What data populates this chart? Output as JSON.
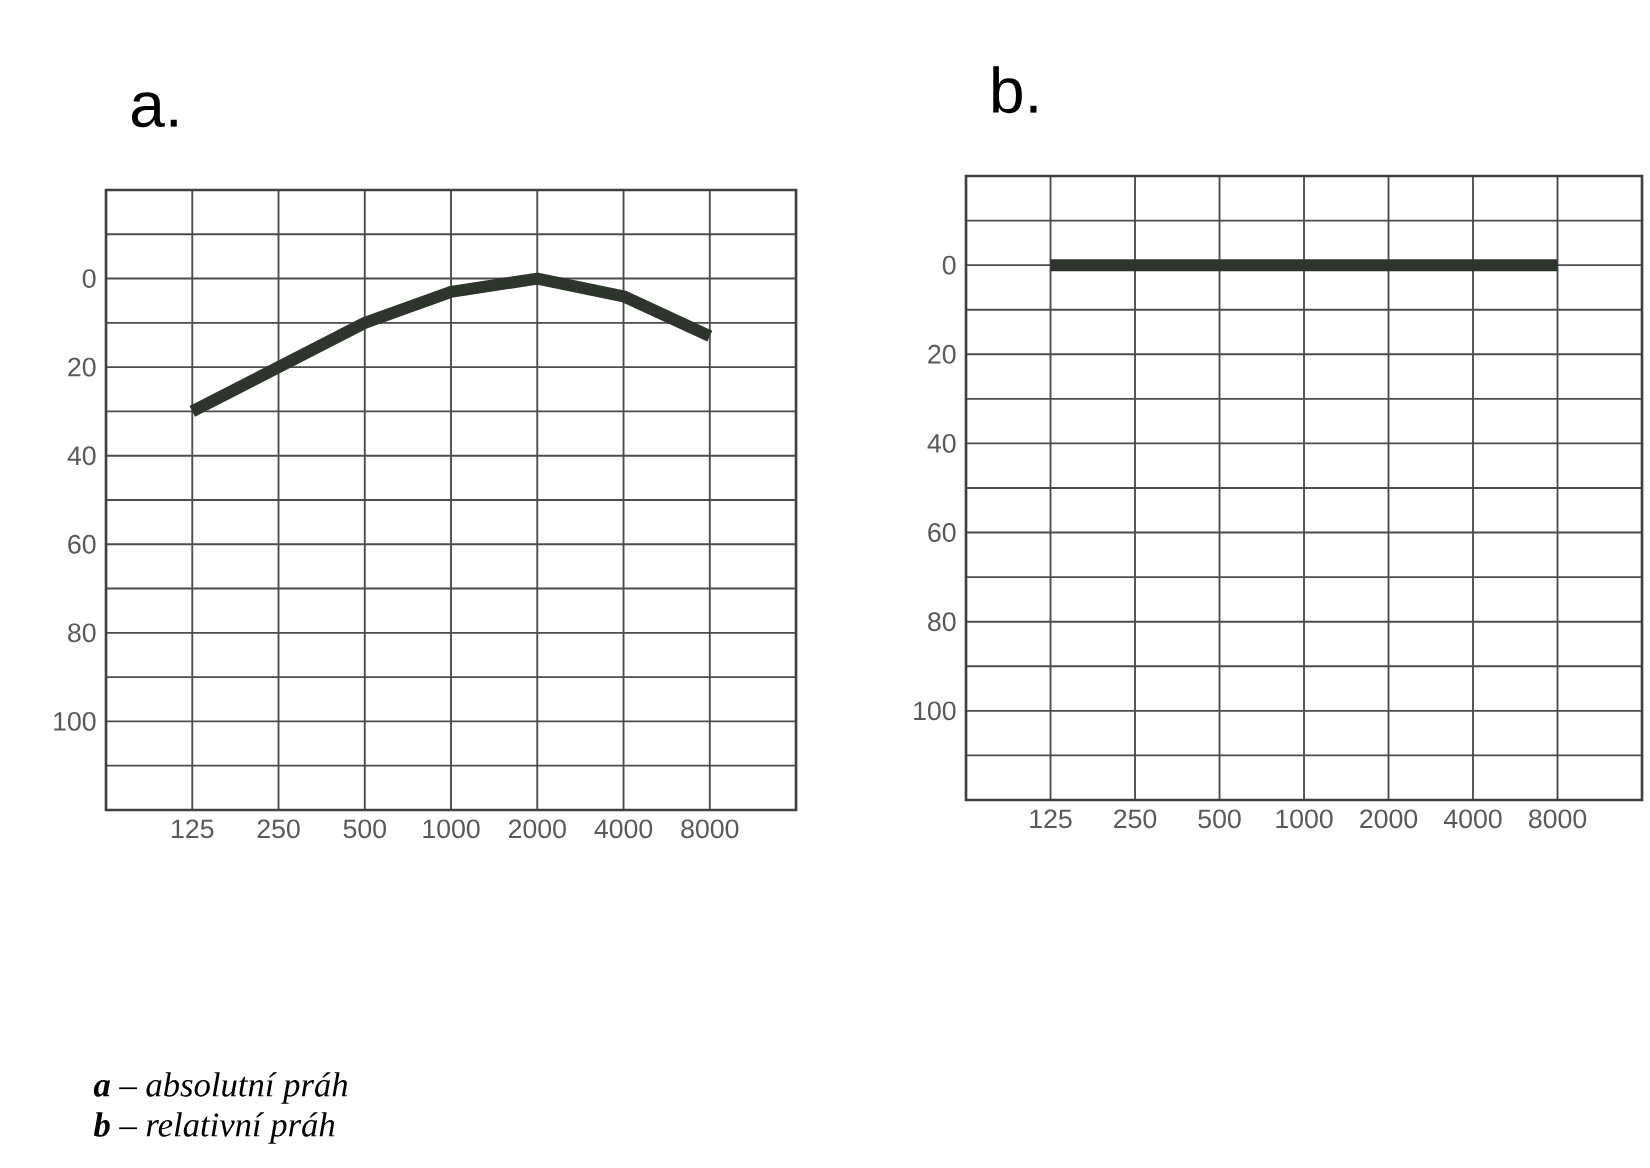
{
  "chart_data": [
    {
      "type": "line",
      "title": "a.",
      "x": [
        125,
        250,
        500,
        1000,
        2000,
        4000,
        8000
      ],
      "values": [
        30,
        20,
        10,
        3,
        0,
        4,
        13
      ],
      "color": "#2d352c",
      "log": "x",
      "xlim": [
        62.5,
        16000
      ],
      "xticks": [
        125,
        250,
        500,
        1000,
        2000,
        4000,
        8000
      ],
      "ylim": [
        120,
        -20
      ],
      "yticks": [
        {
          "value": -10,
          "label": null
        },
        0,
        {
          "value": 10,
          "label": null
        },
        20,
        {
          "value": 30,
          "label": null
        },
        40,
        {
          "value": 50,
          "label": null
        },
        60,
        {
          "value": 70,
          "label": null
        },
        80,
        {
          "value": 90,
          "label": null
        },
        100,
        {
          "value": 110,
          "label": null
        }
      ],
      "grid": true,
      "marker": "none",
      "line_style": "solid",
      "annotations": [
        "**a** – absolutní práh",
        "**b** – relativní práh"
      ]
    },
    {
      "type": "line",
      "title": "b.",
      "x": [
        125,
        250,
        500,
        1000,
        2000,
        4000,
        8000
      ],
      "values": [
        0,
        0,
        0,
        0,
        0,
        0,
        0
      ],
      "color": "#2d352c",
      "log": "x",
      "xlim": [
        62.5,
        16000
      ],
      "xticks": [
        125,
        250,
        500,
        1000,
        2000,
        4000,
        8000
      ],
      "ylim": [
        120,
        -20
      ],
      "yticks": [
        {
          "value": -10,
          "label": null
        },
        0,
        {
          "value": 10,
          "label": null
        },
        20,
        {
          "value": 30,
          "label": null
        },
        40,
        {
          "value": 50,
          "label": null
        },
        60,
        {
          "value": 70,
          "label": null
        },
        80,
        {
          "value": 90,
          "label": null
        },
        100,
        {
          "value": 110,
          "label": null
        }
      ],
      "grid": true,
      "marker": "none",
      "line_style": "solid"
    }
  ]
}
